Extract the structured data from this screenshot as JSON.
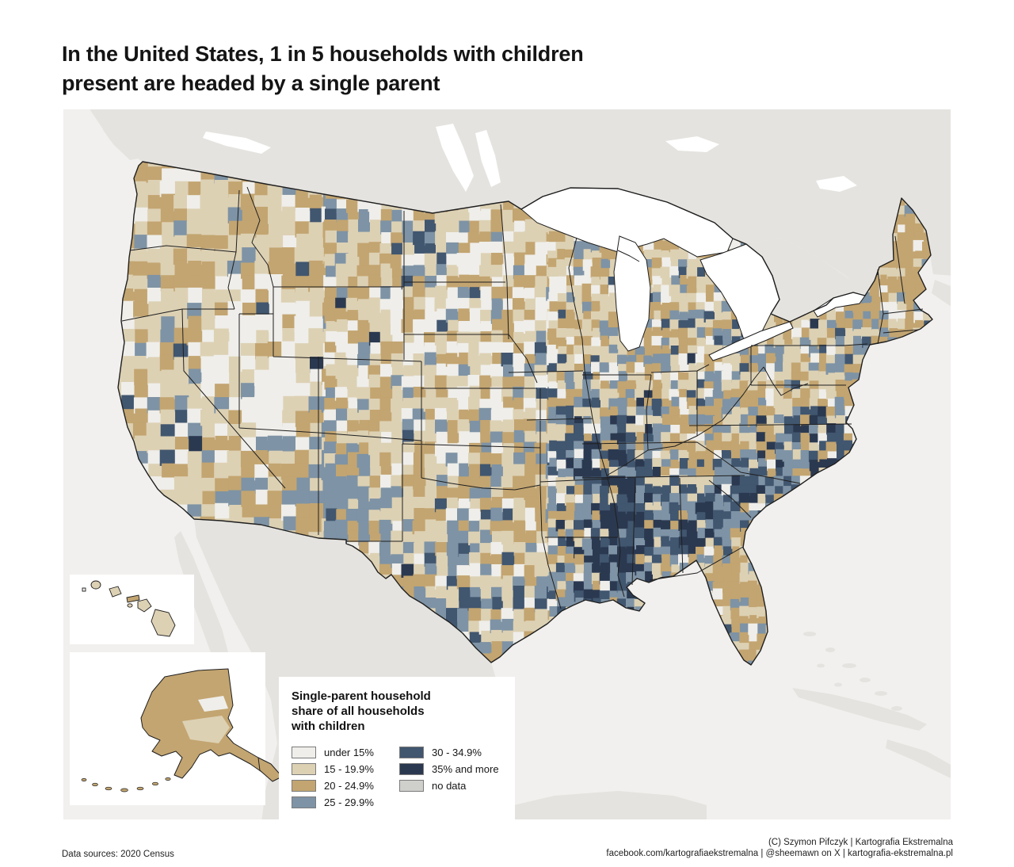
{
  "header": {
    "title_line1": "In the United States, 1 in 5 households with children",
    "title_line2": "present are headed by a single parent"
  },
  "legend": {
    "title_line1": "Single-parent household",
    "title_line2": "share of all households",
    "title_line3": "with children",
    "items": [
      {
        "label": "under 15%",
        "color": "#efeeea"
      },
      {
        "label": "15 - 19.9%",
        "color": "#ddd1b4"
      },
      {
        "label": "20 - 24.9%",
        "color": "#c3a571"
      },
      {
        "label": "25 - 29.9%",
        "color": "#7e93a5"
      },
      {
        "label": "30 - 34.9%",
        "color": "#41566f"
      },
      {
        "label": "35% and more",
        "color": "#2b3950"
      },
      {
        "label": "no data",
        "color": "#cfcfcc"
      }
    ]
  },
  "map": {
    "colors": {
      "ocean": "#f1f0ee",
      "neighbor_land": "#e4e3df",
      "lake": "#ffffff",
      "border": "#1f1f1f",
      "inset_bg": "#ffffff",
      "base_land": "#ddd1b4"
    }
  },
  "footer": {
    "data_sources": "Data sources: 2020 Census",
    "credit_line1": "(C) Szymon Pifczyk | Kartografia Ekstremalna",
    "credit_line2": "facebook.com/kartografiaekstremalna | @sheemawn on X | kartografia-ekstremalna.pl"
  }
}
